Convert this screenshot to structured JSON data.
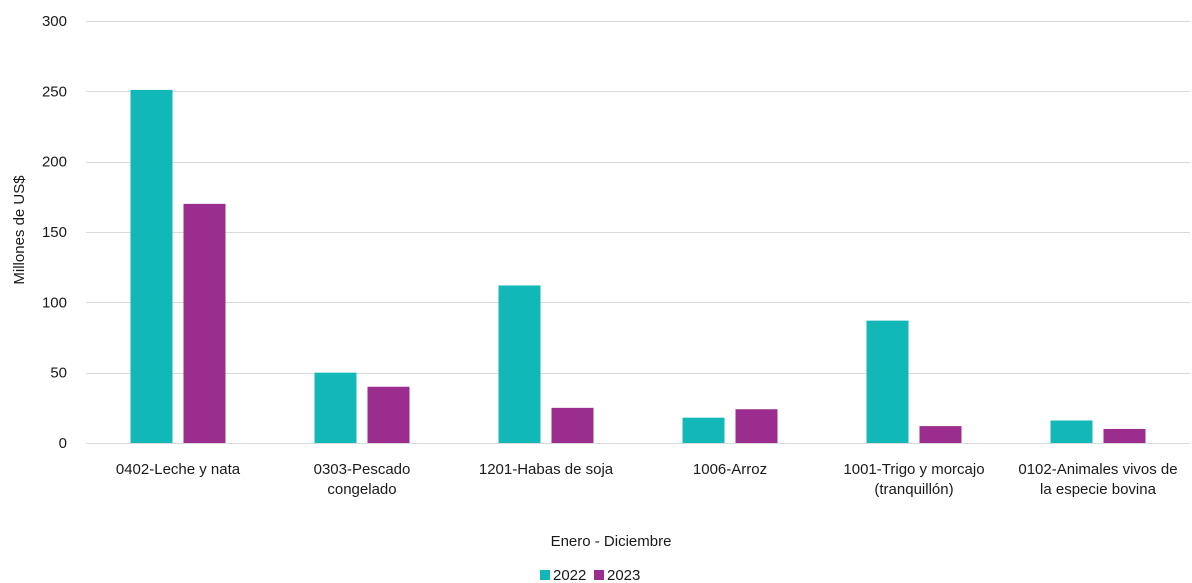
{
  "chart_data": {
    "type": "bar",
    "categories": [
      [
        "0402-Leche y nata"
      ],
      [
        "0303-Pescado",
        "congelado"
      ],
      [
        "1201-Habas de soja"
      ],
      [
        "1006-Arroz"
      ],
      [
        "1001-Trigo y morcajo",
        "(tranquillón)"
      ],
      [
        "0102-Animales vivos de",
        "la especie bovina"
      ]
    ],
    "series": [
      {
        "name": "2022",
        "color": "#12B8B8",
        "values": [
          251,
          50,
          112,
          18,
          87,
          16
        ]
      },
      {
        "name": "2023",
        "color": "#9B2D8E",
        "values": [
          170,
          40,
          25,
          24,
          12,
          10
        ]
      }
    ],
    "xlabel": "Enero - Diciembre",
    "ylabel": "Millones de US$",
    "ylim": [
      0,
      300
    ],
    "yticks": [
      0,
      50,
      100,
      150,
      200,
      250,
      300
    ],
    "grid": true,
    "legend_position": "bottom-center"
  }
}
